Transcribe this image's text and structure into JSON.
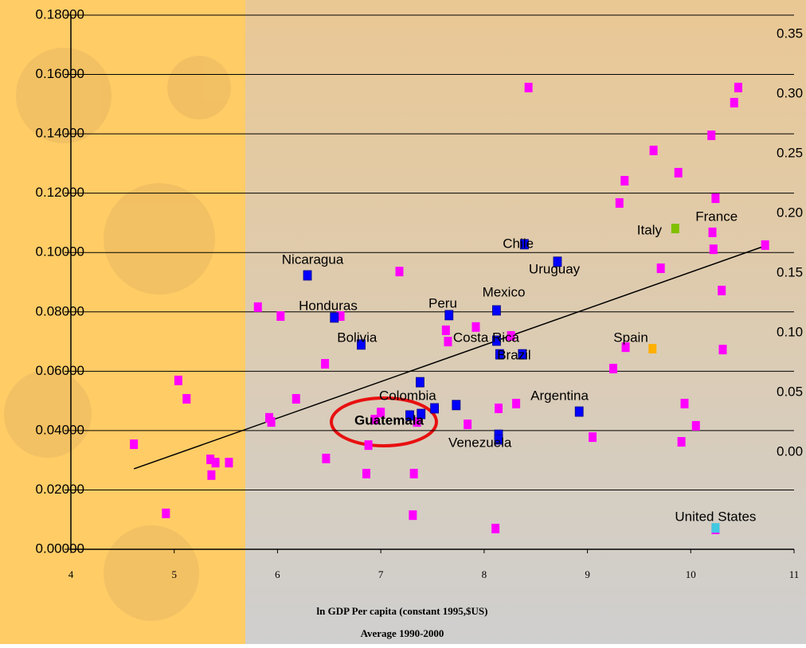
{
  "chart_data": {
    "type": "scatter",
    "x_label": "ln GDP Per capita (constant 1995,$US)",
    "subtitle": "Average 1990-2000",
    "xlim": [
      4,
      11
    ],
    "xticks": [
      4,
      5,
      6,
      7,
      8,
      9,
      10,
      11
    ],
    "ylim": [
      0,
      0.18
    ],
    "yticks": [
      {
        "value": 0,
        "label": "0.00000"
      },
      {
        "value": 0.02,
        "label": "0.02000"
      },
      {
        "value": 0.04,
        "label": "0.04000"
      },
      {
        "value": 0.06,
        "label": "0.06000"
      },
      {
        "value": 0.08,
        "label": "0.08000"
      },
      {
        "value": 0.1,
        "label": "0.10000"
      },
      {
        "value": 0.12,
        "label": "0.12000"
      },
      {
        "value": 0.14,
        "label": "0.14000"
      },
      {
        "value": 0.16,
        "label": "0.16000"
      },
      {
        "value": 0.18,
        "label": "0.18000"
      }
    ],
    "y2lim": [
      -0.0813,
      0.366
    ],
    "y2ticks": [
      {
        "value": 0,
        "label": "0.00"
      },
      0.05,
      {
        "value": 0.1,
        "label": "0.10"
      },
      0.15,
      {
        "value": 0.2,
        "label": "0.20"
      },
      0.25,
      {
        "value": 0.3,
        "label": "0.30"
      },
      0.35
    ],
    "grid": true,
    "series": [
      {
        "color": "#ff00ff",
        "x": [
          8.43,
          10.46,
          10.42,
          10.2,
          9.64,
          9.36,
          9.88,
          10.24,
          9.31,
          10.21,
          10.22,
          10.72,
          9.71,
          7.18,
          10.3,
          5.81,
          6.03,
          6.61,
          7.92,
          7.63,
          7.65,
          8.26,
          6.46,
          9.25,
          9.37,
          10.31,
          5.04,
          5.12,
          6.18,
          5.92,
          5.94,
          7.0,
          6.94,
          9.94,
          10.05,
          9.91,
          9.05,
          8.14,
          8.31,
          7.84,
          4.61,
          6.88,
          6.47,
          5.35,
          5.4,
          5.53,
          5.36,
          6.86,
          7.32,
          4.92,
          7.31,
          8.11,
          10.24,
          7.35
        ],
        "y": [
          0.1556,
          0.1556,
          0.1505,
          0.1395,
          0.1344,
          0.1242,
          0.1269,
          0.1183,
          0.1167,
          0.1068,
          0.1011,
          0.1025,
          0.0947,
          0.0936,
          0.0872,
          0.0816,
          0.0786,
          0.0786,
          0.0749,
          0.0738,
          0.07,
          0.0719,
          0.0625,
          0.0609,
          0.0681,
          0.0673,
          0.0569,
          0.0507,
          0.0507,
          0.0443,
          0.0429,
          0.0461,
          0.0437,
          0.0491,
          0.0416,
          0.0362,
          0.0378,
          0.0475,
          0.0491,
          0.0421,
          0.0354,
          0.0351,
          0.0306,
          0.0303,
          0.0292,
          0.0292,
          0.025,
          0.0255,
          0.0255,
          0.0121,
          0.0115,
          0.007,
          0.0067,
          0.0429
        ]
      },
      {
        "color": "#0000ff",
        "x": [
          6.29,
          6.55,
          6.81,
          7.66,
          8.12,
          8.39,
          8.71,
          8.12,
          8.37,
          8.15,
          7.38,
          7.28,
          7.39,
          7.52,
          7.73,
          8.14,
          8.14,
          8.92
        ],
        "y": [
          0.0923,
          0.0781,
          0.069,
          0.0789,
          0.0805,
          0.1028,
          0.0969,
          0.0703,
          0.0657,
          0.0657,
          0.0563,
          0.0451,
          0.0456,
          0.0475,
          0.0486,
          0.0386,
          0.037,
          0.0464
        ]
      },
      {
        "color": "#ffb000",
        "x": [
          9.63
        ],
        "y": [
          0.0676
        ]
      },
      {
        "color": "#80c000",
        "x": [
          9.85
        ],
        "y": [
          0.1081
        ]
      },
      {
        "color": "#40c8e0",
        "x": [
          10.24
        ],
        "y": [
          0.0072
        ]
      }
    ],
    "trendline": {
      "color": "#000000",
      "x": [
        4.61,
        10.7
      ],
      "y": [
        0.0271,
        0.102
      ]
    },
    "annotations": [
      {
        "text": "Nicaragua",
        "x": 6.34,
        "y": 0.0974
      },
      {
        "text": "Honduras",
        "x": 6.49,
        "y": 0.0818
      },
      {
        "text": "Peru",
        "x": 7.6,
        "y": 0.0826
      },
      {
        "text": "Mexico",
        "x": 8.19,
        "y": 0.0864
      },
      {
        "text": "Chile",
        "x": 8.33,
        "y": 0.1028
      },
      {
        "text": "Uruguay",
        "x": 8.68,
        "y": 0.0942
      },
      {
        "text": "Bolivia",
        "x": 6.77,
        "y": 0.0711
      },
      {
        "text": "Costa Rica",
        "x": 8.02,
        "y": 0.0711
      },
      {
        "text": "Brazil",
        "x": 8.29,
        "y": 0.0652
      },
      {
        "text": "Spain",
        "x": 9.42,
        "y": 0.0711
      },
      {
        "text": "Italy",
        "x": 9.6,
        "y": 0.1073
      },
      {
        "text": "France",
        "x": 10.25,
        "y": 0.1119
      },
      {
        "text": "Colombia",
        "x": 7.26,
        "y": 0.0515
      },
      {
        "text": "Guatemala",
        "x": 7.08,
        "y": 0.0432,
        "weight": "bold"
      },
      {
        "text": "Venezuela",
        "x": 7.96,
        "y": 0.0357
      },
      {
        "text": "Argentina",
        "x": 8.73,
        "y": 0.0515
      },
      {
        "text": "United States",
        "x": 10.24,
        "y": 0.0107
      }
    ]
  }
}
